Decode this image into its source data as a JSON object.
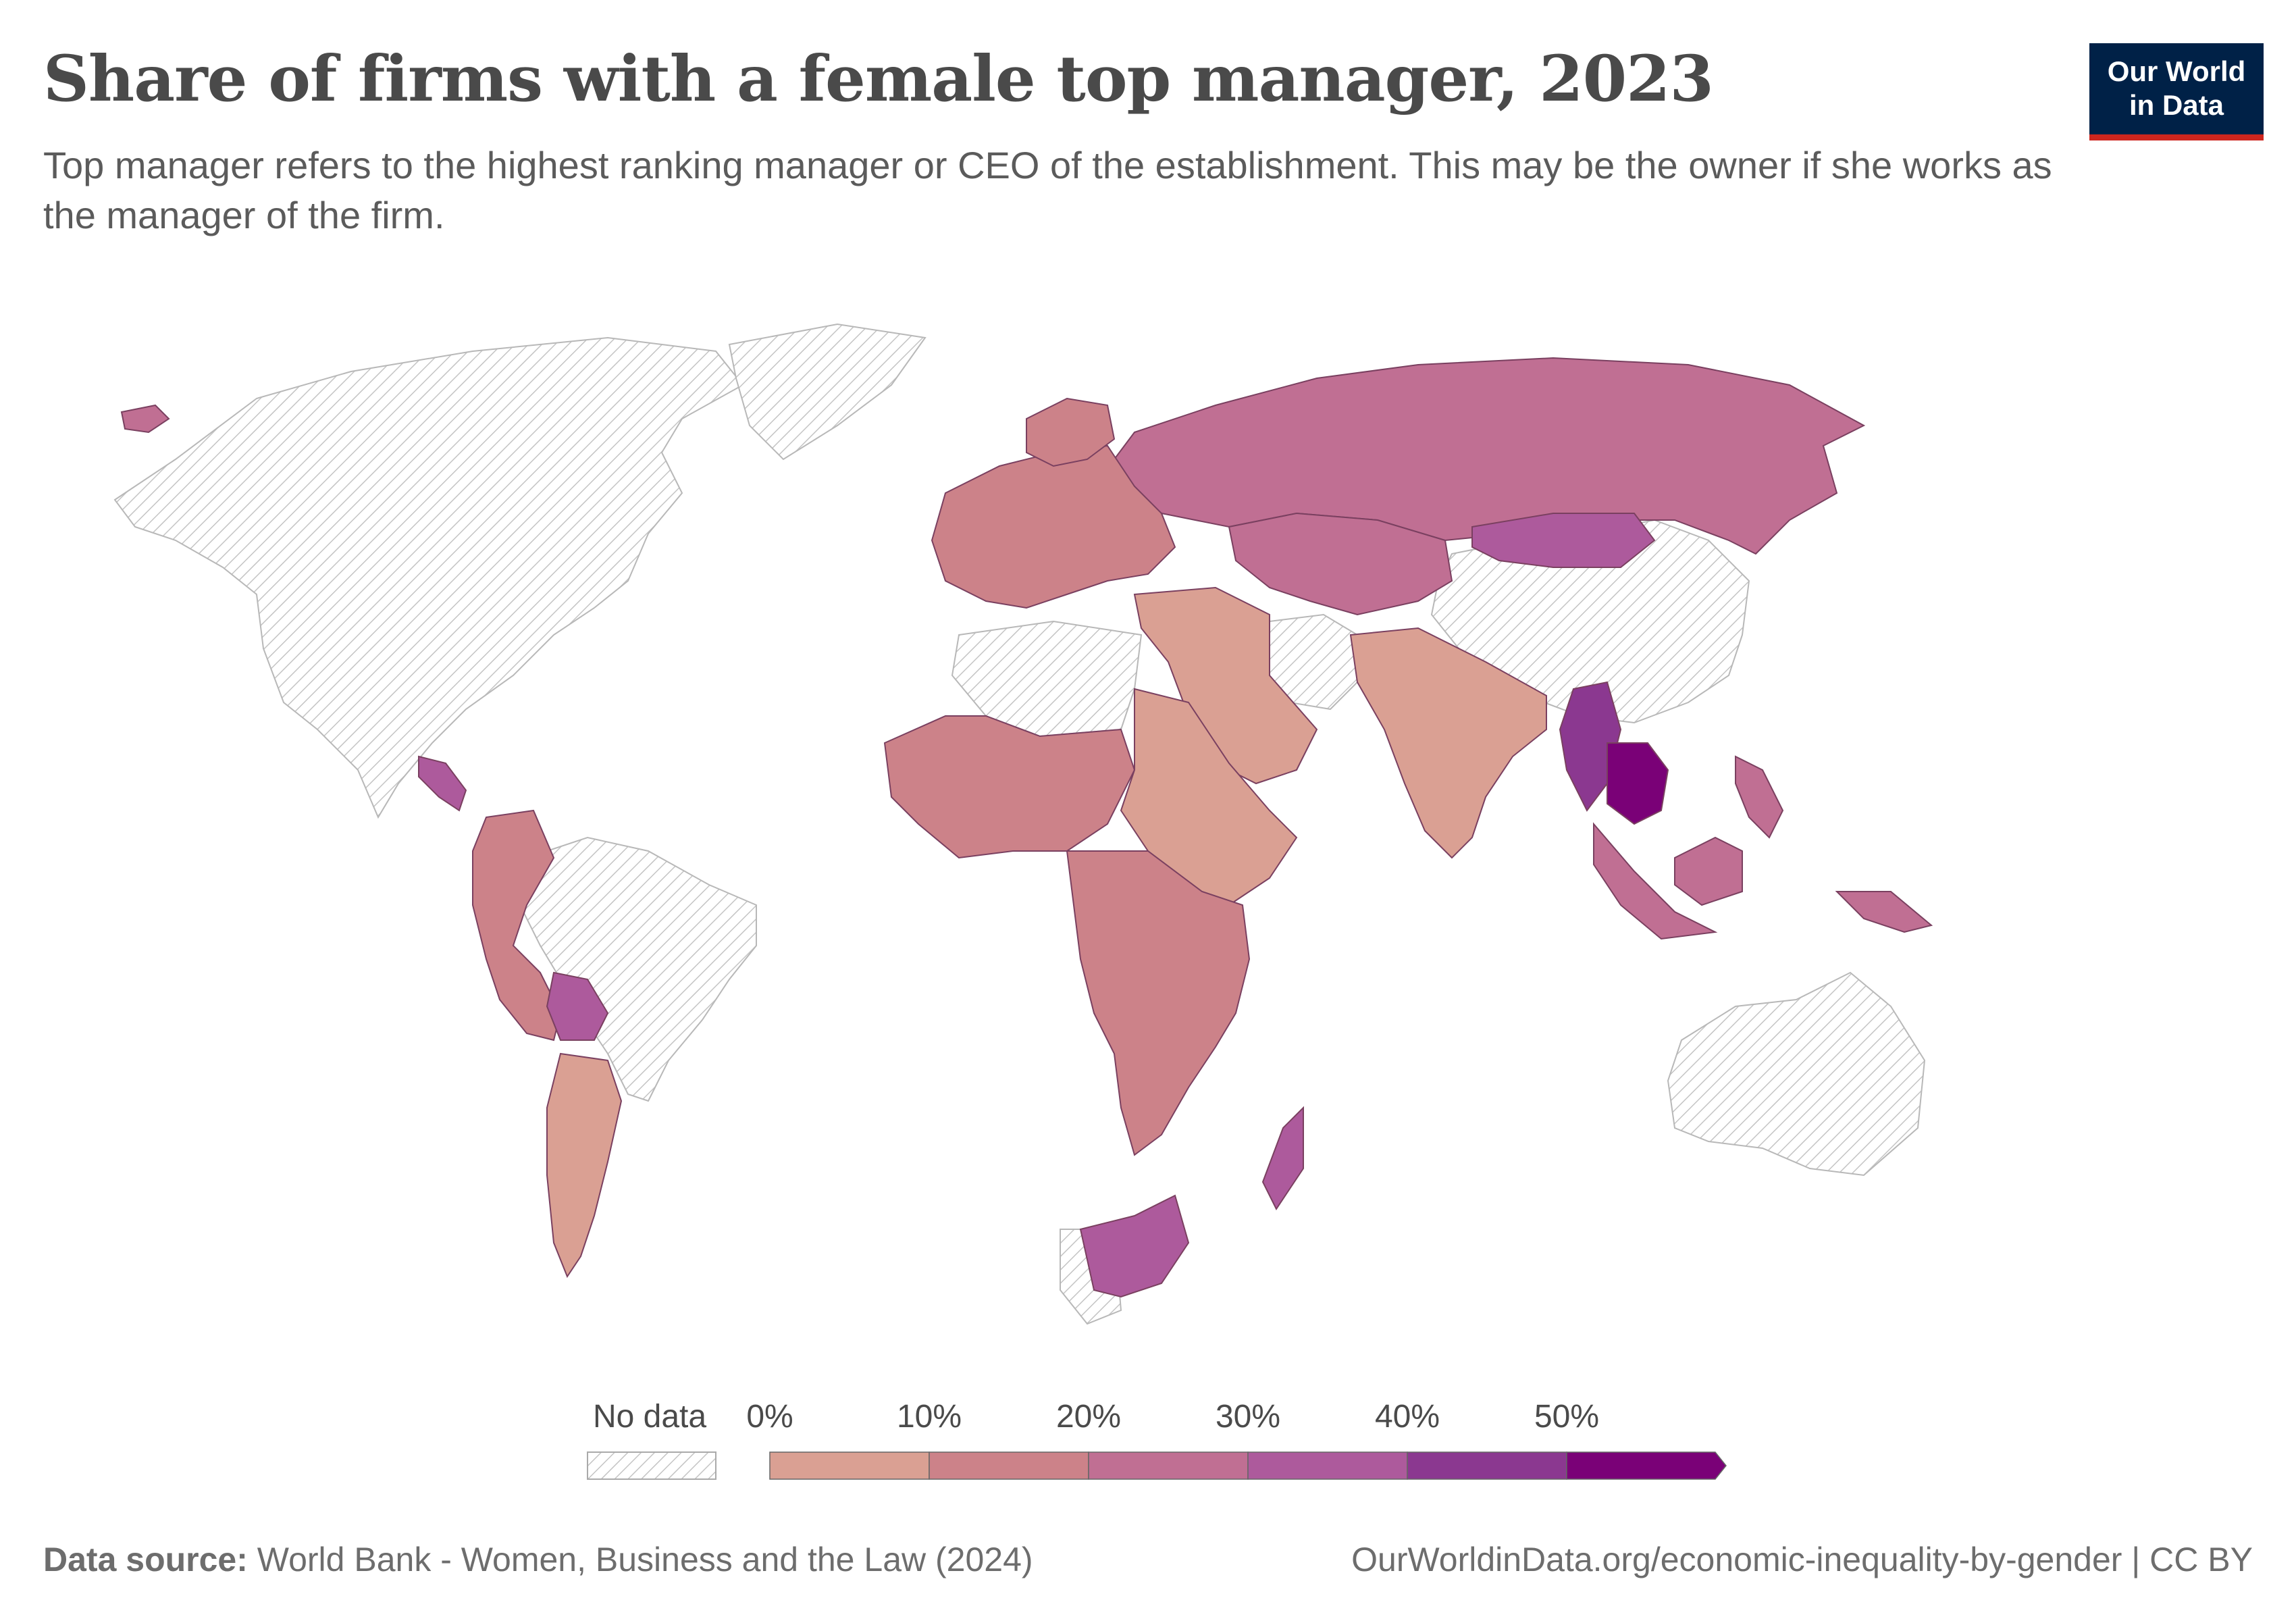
{
  "header": {
    "title": "Share of firms with a female top manager, 2023",
    "subtitle": "Top manager refers to the highest ranking manager or CEO of the establishment. This may be the owner if she works as the manager of the firm."
  },
  "logo": {
    "line1": "Our World",
    "line2": "in Data"
  },
  "legend": {
    "no_data_label": "No data",
    "bins": [
      {
        "label": "0%",
        "color": "#daa093"
      },
      {
        "label": "10%",
        "color": "#cc8289"
      },
      {
        "label": "20%",
        "color": "#c06f93"
      },
      {
        "label": "30%",
        "color": "#ad5a9c"
      },
      {
        "label": "40%",
        "color": "#8b3890"
      },
      {
        "label": "50%",
        "color": "#7a0177"
      }
    ]
  },
  "footer": {
    "source_label": "Data source:",
    "source_text": "World Bank - Women, Business and the Law (2024)",
    "url": "OurWorldinData.org/economic-inequality-by-gender | CC BY"
  },
  "colors": {
    "no_data_hatch": "#bdbdbd",
    "border": "#7a4060",
    "logo_bg": "#002147",
    "logo_accent": "#ce261e"
  }
}
